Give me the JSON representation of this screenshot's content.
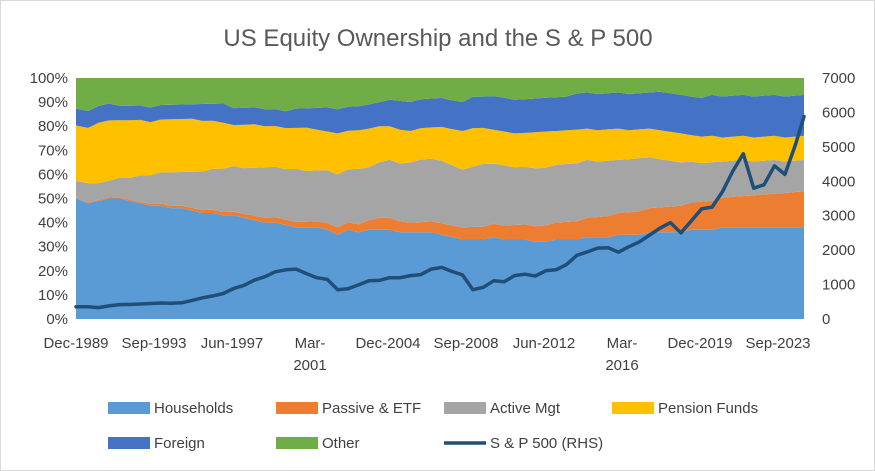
{
  "chart_data": {
    "type": "area",
    "title": "US Equity Ownership and the S & P 500",
    "x": [
      1989.92,
      1990.5,
      1991,
      1991.5,
      1992,
      1992.5,
      1993,
      1993.5,
      1994,
      1994.5,
      1995,
      1995.5,
      1996,
      1996.5,
      1997,
      1997.5,
      1998,
      1998.5,
      1999,
      1999.5,
      2000,
      2000.5,
      2001,
      2001.5,
      2002,
      2002.5,
      2003,
      2003.5,
      2004,
      2004.5,
      2005,
      2005.5,
      2006,
      2006.5,
      2007,
      2007.5,
      2008,
      2008.5,
      2009,
      2009.5,
      2010,
      2010.5,
      2011,
      2011.5,
      2012,
      2012.5,
      2013,
      2013.5,
      2014,
      2014.5,
      2015,
      2015.5,
      2016,
      2016.5,
      2017,
      2017.5,
      2018,
      2018.5,
      2019,
      2019.5,
      2020,
      2020.5,
      2021,
      2021.5,
      2022,
      2022.5,
      2023,
      2023.5,
      2024,
      2024.5,
      2024.92
    ],
    "x_tick_labels": [
      {
        "at": 1989.92,
        "lines": [
          "Dec-1989"
        ]
      },
      {
        "at": 1993.67,
        "lines": [
          "Sep-1993"
        ]
      },
      {
        "at": 1997.42,
        "lines": [
          "Jun-1997"
        ]
      },
      {
        "at": 2001.17,
        "lines": [
          "Mar-",
          "2001"
        ]
      },
      {
        "at": 2004.92,
        "lines": [
          "Dec-2004"
        ]
      },
      {
        "at": 2008.67,
        "lines": [
          "Sep-2008"
        ]
      },
      {
        "at": 2012.42,
        "lines": [
          "Jun-2012"
        ]
      },
      {
        "at": 2016.17,
        "lines": [
          "Mar-",
          "2016"
        ]
      },
      {
        "at": 2019.92,
        "lines": [
          "Dec-2019"
        ]
      },
      {
        "at": 2023.67,
        "lines": [
          "Sep-2023"
        ]
      }
    ],
    "y_left": {
      "min": 0,
      "max": 1,
      "tick_labels": [
        "0%",
        "10%",
        "20%",
        "30%",
        "40%",
        "50%",
        "60%",
        "70%",
        "80%",
        "90%",
        "100%"
      ]
    },
    "y_right": {
      "min": 0,
      "max": 7000,
      "tick_labels": [
        "0",
        "1000",
        "2000",
        "3000",
        "4000",
        "5000",
        "6000",
        "7000"
      ]
    },
    "grid": false,
    "legend_position": "bottom",
    "series": [
      {
        "name": "Households",
        "color": "#5B9BD5",
        "values": [
          0.5,
          0.48,
          0.49,
          0.5,
          0.5,
          0.49,
          0.48,
          0.47,
          0.47,
          0.46,
          0.46,
          0.45,
          0.44,
          0.44,
          0.43,
          0.43,
          0.42,
          0.41,
          0.4,
          0.4,
          0.39,
          0.38,
          0.38,
          0.38,
          0.37,
          0.35,
          0.37,
          0.36,
          0.37,
          0.37,
          0.37,
          0.36,
          0.36,
          0.36,
          0.36,
          0.35,
          0.34,
          0.33,
          0.33,
          0.33,
          0.34,
          0.33,
          0.33,
          0.33,
          0.32,
          0.32,
          0.33,
          0.33,
          0.33,
          0.34,
          0.34,
          0.34,
          0.35,
          0.35,
          0.35,
          0.36,
          0.36,
          0.36,
          0.36,
          0.37,
          0.37,
          0.37,
          0.38,
          0.38,
          0.38,
          0.38,
          0.38,
          0.38,
          0.38,
          0.38,
          0.38
        ]
      },
      {
        "name": "Passive & ETF",
        "color": "#ED7D31",
        "values": [
          0.003,
          0.003,
          0.004,
          0.004,
          0.005,
          0.005,
          0.006,
          0.007,
          0.008,
          0.009,
          0.01,
          0.011,
          0.012,
          0.013,
          0.014,
          0.015,
          0.016,
          0.018,
          0.02,
          0.021,
          0.022,
          0.023,
          0.024,
          0.026,
          0.028,
          0.03,
          0.031,
          0.033,
          0.04,
          0.05,
          0.05,
          0.045,
          0.04,
          0.042,
          0.045,
          0.047,
          0.048,
          0.05,
          0.052,
          0.053,
          0.055,
          0.058,
          0.06,
          0.062,
          0.065,
          0.068,
          0.07,
          0.073,
          0.076,
          0.08,
          0.083,
          0.087,
          0.09,
          0.093,
          0.097,
          0.1,
          0.103,
          0.107,
          0.11,
          0.113,
          0.117,
          0.12,
          0.123,
          0.127,
          0.13,
          0.133,
          0.137,
          0.14,
          0.143,
          0.147,
          0.15
        ]
      },
      {
        "name": "Active Mgt",
        "color": "#A5A5A5",
        "values": [
          0.07,
          0.08,
          0.07,
          0.07,
          0.08,
          0.09,
          0.11,
          0.12,
          0.13,
          0.14,
          0.14,
          0.15,
          0.16,
          0.17,
          0.18,
          0.19,
          0.19,
          0.2,
          0.21,
          0.21,
          0.21,
          0.22,
          0.21,
          0.21,
          0.22,
          0.22,
          0.22,
          0.23,
          0.22,
          0.23,
          0.24,
          0.24,
          0.25,
          0.26,
          0.26,
          0.26,
          0.25,
          0.24,
          0.25,
          0.26,
          0.25,
          0.25,
          0.24,
          0.24,
          0.24,
          0.24,
          0.24,
          0.24,
          0.24,
          0.24,
          0.23,
          0.23,
          0.22,
          0.22,
          0.22,
          0.21,
          0.2,
          0.19,
          0.18,
          0.17,
          0.16,
          0.16,
          0.15,
          0.15,
          0.15,
          0.14,
          0.14,
          0.14,
          0.13,
          0.13,
          0.13
        ]
      },
      {
        "name": "Pension Funds",
        "color": "#FFC000",
        "values": [
          0.23,
          0.23,
          0.25,
          0.25,
          0.24,
          0.24,
          0.23,
          0.22,
          0.22,
          0.22,
          0.22,
          0.22,
          0.21,
          0.2,
          0.19,
          0.17,
          0.18,
          0.18,
          0.17,
          0.17,
          0.17,
          0.17,
          0.18,
          0.17,
          0.16,
          0.17,
          0.16,
          0.16,
          0.16,
          0.15,
          0.14,
          0.14,
          0.13,
          0.13,
          0.13,
          0.14,
          0.15,
          0.16,
          0.16,
          0.15,
          0.14,
          0.14,
          0.14,
          0.14,
          0.15,
          0.15,
          0.14,
          0.14,
          0.14,
          0.13,
          0.13,
          0.13,
          0.13,
          0.12,
          0.12,
          0.12,
          0.12,
          0.12,
          0.12,
          0.11,
          0.11,
          0.11,
          0.1,
          0.1,
          0.1,
          0.1,
          0.1,
          0.1,
          0.1,
          0.1,
          0.1
        ]
      },
      {
        "name": "Foreign",
        "color": "#4472C4",
        "values": [
          0.07,
          0.07,
          0.07,
          0.07,
          0.06,
          0.06,
          0.06,
          0.06,
          0.06,
          0.06,
          0.06,
          0.06,
          0.07,
          0.07,
          0.08,
          0.07,
          0.07,
          0.07,
          0.07,
          0.07,
          0.07,
          0.08,
          0.08,
          0.09,
          0.1,
          0.1,
          0.1,
          0.1,
          0.1,
          0.1,
          0.11,
          0.12,
          0.12,
          0.12,
          0.12,
          0.12,
          0.12,
          0.12,
          0.13,
          0.13,
          0.14,
          0.14,
          0.14,
          0.14,
          0.14,
          0.14,
          0.14,
          0.14,
          0.15,
          0.15,
          0.15,
          0.15,
          0.15,
          0.15,
          0.15,
          0.15,
          0.16,
          0.16,
          0.16,
          0.16,
          0.16,
          0.17,
          0.17,
          0.17,
          0.17,
          0.17,
          0.17,
          0.17,
          0.17,
          0.17,
          0.17
        ]
      },
      {
        "name": "Other",
        "color": "#70AD47",
        "values": [
          0.127,
          0.137,
          0.116,
          0.106,
          0.115,
          0.115,
          0.114,
          0.113,
          0.102,
          0.101,
          0.11,
          0.109,
          0.108,
          0.107,
          0.106,
          0.125,
          0.124,
          0.122,
          0.13,
          0.129,
          0.138,
          0.127,
          0.126,
          0.124,
          0.122,
          0.13,
          0.119,
          0.117,
          0.11,
          0.1,
          0.09,
          0.095,
          0.1,
          0.088,
          0.085,
          0.083,
          0.092,
          0.1,
          0.078,
          0.077,
          0.075,
          0.082,
          0.08,
          0.078,
          0.075,
          0.072,
          0.07,
          0.067,
          0.054,
          0.05,
          0.057,
          0.053,
          0.06,
          0.067,
          0.063,
          0.06,
          0.057,
          0.063,
          0.07,
          0.067,
          0.073,
          0.07,
          0.067,
          0.063,
          0.06,
          0.067,
          0.063,
          0.06,
          0.067,
          0.063,
          0.06
        ]
      }
    ],
    "line_series": {
      "name": "S & P 500 (RHS)",
      "axis": "right",
      "color": "#1F4E79",
      "values": [
        353,
        358,
        330,
        380,
        417,
        420,
        435,
        450,
        466,
        455,
        470,
        540,
        615,
        670,
        740,
        885,
        980,
        1130,
        1230,
        1370,
        1430,
        1450,
        1320,
        1200,
        1150,
        850,
        880,
        990,
        1110,
        1120,
        1200,
        1200,
        1260,
        1290,
        1450,
        1500,
        1380,
        1280,
        850,
        920,
        1110,
        1080,
        1260,
        1300,
        1250,
        1400,
        1430,
        1580,
        1850,
        1950,
        2060,
        2070,
        1940,
        2100,
        2240,
        2440,
        2640,
        2800,
        2500,
        2850,
        3200,
        3250,
        3700,
        4300,
        4800,
        3800,
        3900,
        4450,
        4200,
        5050,
        5880
      ]
    }
  }
}
